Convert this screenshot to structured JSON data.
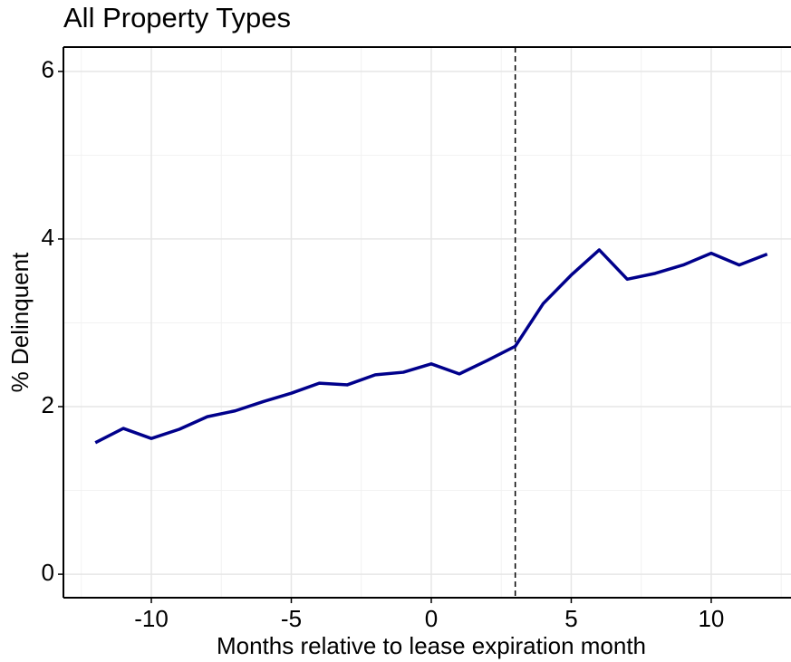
{
  "chart_data": {
    "type": "line",
    "title": "All Property Types",
    "x_label": "Months relative to lease expiration month",
    "y_label": "% Delinquent",
    "x": [
      -12,
      -11,
      -10,
      -9,
      -8,
      -7,
      -6,
      -5,
      -4,
      -3,
      -2,
      -1,
      0,
      1,
      2,
      3,
      4,
      5,
      6,
      7,
      8,
      9,
      10,
      11,
      12
    ],
    "series": [
      {
        "name": "All Property Types",
        "color": "#00008b",
        "values": [
          1.57,
          1.74,
          1.62,
          1.73,
          1.88,
          1.95,
          2.06,
          2.16,
          2.28,
          2.26,
          2.38,
          2.41,
          2.51,
          2.39,
          2.55,
          2.72,
          3.23,
          3.57,
          3.87,
          3.52,
          3.59,
          3.69,
          3.83,
          3.69,
          3.82
        ]
      }
    ],
    "xlim": [
      -13.14,
      12.85
    ],
    "ylim": [
      -0.28,
      6.29
    ],
    "xticks": [
      -10,
      -5,
      0,
      5,
      10
    ],
    "yticks": [
      0,
      2,
      4,
      6
    ],
    "minor_xticks": [
      -12.5,
      -7.5,
      -2.5,
      2.5,
      7.5,
      12.5
    ],
    "minor_yticks": [
      1,
      3,
      5
    ],
    "grid": true,
    "vline": 3
  }
}
